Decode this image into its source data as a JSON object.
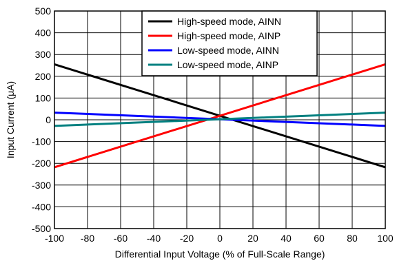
{
  "chart_data": {
    "type": "line",
    "xlabel": "Differential Input Voltage (% of Full-Scale Range)",
    "ylabel": "Input Current (μA)",
    "xlim": [
      -100,
      100
    ],
    "ylim": [
      -500,
      500
    ],
    "xticks": [
      -100,
      -80,
      -60,
      -40,
      -20,
      0,
      20,
      40,
      60,
      80,
      100
    ],
    "yticks": [
      -500,
      -400,
      -300,
      -200,
      -100,
      0,
      100,
      200,
      300,
      400,
      500
    ],
    "grid": true,
    "legend_position": "top-right",
    "series": [
      {
        "name": "High-speed mode, AINN",
        "color": "#000000",
        "x": [
          -100,
          100
        ],
        "y": [
          255,
          -218
        ]
      },
      {
        "name": "High-speed mode, AINP",
        "color": "#ff0000",
        "x": [
          -100,
          100
        ],
        "y": [
          -218,
          255
        ]
      },
      {
        "name": "Low-speed mode, AINN",
        "color": "#0000ff",
        "x": [
          -100,
          100
        ],
        "y": [
          33,
          -28
        ]
      },
      {
        "name": "Low-speed mode, AINP",
        "color": "#008080",
        "x": [
          -100,
          100
        ],
        "y": [
          -28,
          33
        ]
      }
    ]
  }
}
